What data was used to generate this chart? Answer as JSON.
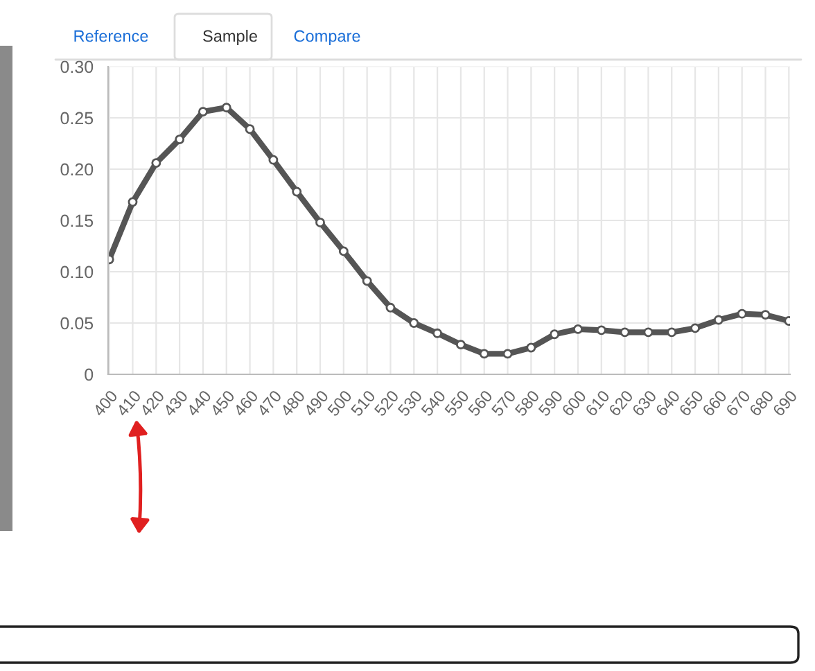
{
  "chart_data": {
    "type": "line",
    "categories": [
      "400",
      "410",
      "420",
      "430",
      "440",
      "450",
      "460",
      "470",
      "480",
      "490",
      "500",
      "510",
      "520",
      "530",
      "540",
      "550",
      "560",
      "570",
      "580",
      "590",
      "600",
      "610",
      "620",
      "630",
      "640",
      "650",
      "660",
      "670",
      "680",
      "690"
    ],
    "series": [
      {
        "color": "#555555",
        "values": [
          0.112,
          0.168,
          0.206,
          0.229,
          0.256,
          0.26,
          0.239,
          0.209,
          0.178,
          0.148,
          0.12,
          0.091,
          0.065,
          0.05,
          0.04,
          0.029,
          0.02,
          0.02,
          0.026,
          0.039,
          0.044,
          0.043,
          0.041,
          0.041,
          0.041,
          0.045,
          0.053,
          0.059,
          0.058,
          0.052
        ]
      }
    ],
    "ylim": [
      0,
      0.3
    ],
    "yticks": [
      {
        "value": 0,
        "label": "0"
      },
      {
        "value": 0.05,
        "label": "0.05"
      },
      {
        "value": 0.1,
        "label": "0.10"
      },
      {
        "value": 0.15,
        "label": "0.15"
      },
      {
        "value": 0.2,
        "label": "0.20"
      },
      {
        "value": 0.25,
        "label": "0.25"
      },
      {
        "value": 0.3,
        "label": "0.30"
      }
    ],
    "grid": true,
    "marker": "circle",
    "line_style": "solid",
    "legend": false,
    "annotations": [
      "Reference",
      "Sample",
      "Compare"
    ]
  }
}
